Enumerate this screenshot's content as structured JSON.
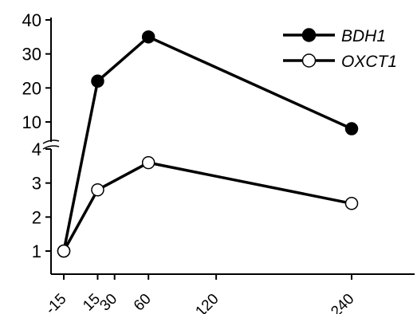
{
  "chart_data": {
    "type": "line",
    "title": "",
    "xlabel": "",
    "ylabel": "",
    "x": [
      -15,
      15,
      60,
      240
    ],
    "x_tick_labels": [
      "-15",
      "15",
      "30",
      "60",
      "120",
      "240"
    ],
    "x_tick_values": [
      -15,
      15,
      30,
      60,
      120,
      240
    ],
    "xlim": [
      -20,
      260
    ],
    "y_axis_break": {
      "lower_range": [
        0.5,
        4
      ],
      "upper_range": [
        6,
        40
      ]
    },
    "y_tick_labels_lower": [
      "1",
      "2",
      "3",
      "4"
    ],
    "y_tick_values_lower": [
      1,
      2,
      3,
      4
    ],
    "y_tick_labels_upper": [
      "10",
      "20",
      "30",
      "40"
    ],
    "y_tick_values_upper": [
      10,
      20,
      30,
      40
    ],
    "series": [
      {
        "name": "BDH1",
        "marker": "filled-circle",
        "color": "#000000",
        "values": [
          1,
          22,
          35,
          8
        ]
      },
      {
        "name": "OXCT1",
        "marker": "open-circle",
        "color": "#000000",
        "values": [
          1,
          2.8,
          3.6,
          2.4
        ]
      }
    ],
    "legend_position": "top-right",
    "grid": false
  }
}
